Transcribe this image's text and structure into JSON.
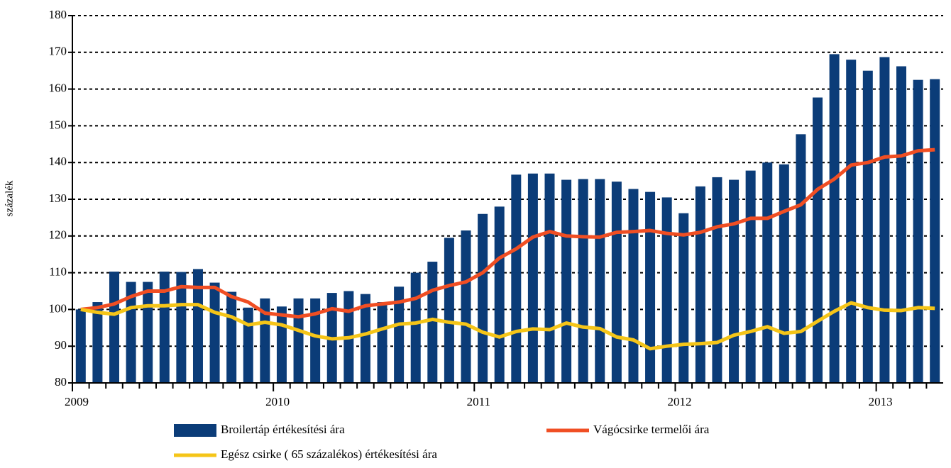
{
  "chart_data": {
    "type": "bar_line",
    "y_label": "százalék",
    "categories": [
      "2009",
      null,
      null,
      null,
      null,
      null,
      null,
      null,
      null,
      null,
      null,
      null,
      "2010",
      null,
      null,
      null,
      null,
      null,
      null,
      null,
      null,
      null,
      null,
      null,
      "2011",
      null,
      null,
      null,
      null,
      null,
      null,
      null,
      null,
      null,
      null,
      null,
      "2012",
      null,
      null,
      null,
      null,
      null,
      null,
      null,
      null,
      null,
      null,
      null,
      "2013",
      null,
      null,
      null
    ],
    "series": [
      {
        "name": "Broilertáp értékesítési ára",
        "type": "bar",
        "color": "#0b3c78",
        "values": [
          100,
          102,
          110.3,
          107.5,
          107.5,
          110.3,
          110.2,
          111,
          107.3,
          104.8,
          100.5,
          103,
          100.8,
          103,
          103,
          104.5,
          105,
          104.2,
          102,
          106.2,
          110,
          113,
          119.5,
          121.5,
          126,
          128,
          136.7,
          137,
          137,
          135.3,
          135.5,
          135.5,
          134.8,
          132.8,
          132,
          130.5,
          126.2,
          133.5,
          136,
          135.3,
          137.8,
          140,
          139.5,
          147.7,
          157.7,
          169.5,
          168,
          165,
          168.7,
          166.2,
          162.5,
          162.7
        ]
      },
      {
        "name": "Vágócsirke termelői ára",
        "type": "line",
        "color": "#f04e23",
        "values": [
          100,
          100.5,
          101.5,
          103.5,
          105,
          105,
          106.2,
          106,
          106,
          103.5,
          102,
          99,
          98.5,
          98,
          98.8,
          100.2,
          99.5,
          101,
          101.5,
          102,
          103,
          105.2,
          106.5,
          107.5,
          110,
          114,
          116.5,
          119.7,
          121.2,
          120,
          119.8,
          119.7,
          121,
          121.2,
          121.5,
          120.7,
          120.3,
          121,
          122.5,
          123.3,
          124.8,
          124.8,
          126.7,
          128.5,
          132.7,
          135.5,
          139.3,
          140,
          141.5,
          141.8,
          143.2,
          143.5
        ]
      },
      {
        "name": "Egész csirke ( 65 százalékos) értékesítési ára",
        "type": "line",
        "color": "#f5c518",
        "values": [
          100,
          99.2,
          98.7,
          100.5,
          101,
          101,
          101.3,
          101.3,
          99.2,
          98,
          95.8,
          96.5,
          95.8,
          94.3,
          92.8,
          92,
          92.3,
          93.3,
          94.7,
          96,
          96.3,
          97.3,
          96.5,
          96,
          93.8,
          92.5,
          94,
          94.7,
          94.5,
          96.3,
          95.2,
          94.8,
          92.5,
          91.7,
          89.3,
          90,
          90.5,
          90.7,
          91,
          93,
          94,
          95.3,
          93.5,
          94,
          96.8,
          99.5,
          101.8,
          100.5,
          99.8,
          99.7,
          100.5,
          100.3
        ]
      }
    ],
    "ylim": [
      80,
      180
    ],
    "yticks": [
      80,
      90,
      100,
      110,
      120,
      130,
      140,
      150,
      160,
      170,
      180
    ],
    "grid": true
  }
}
